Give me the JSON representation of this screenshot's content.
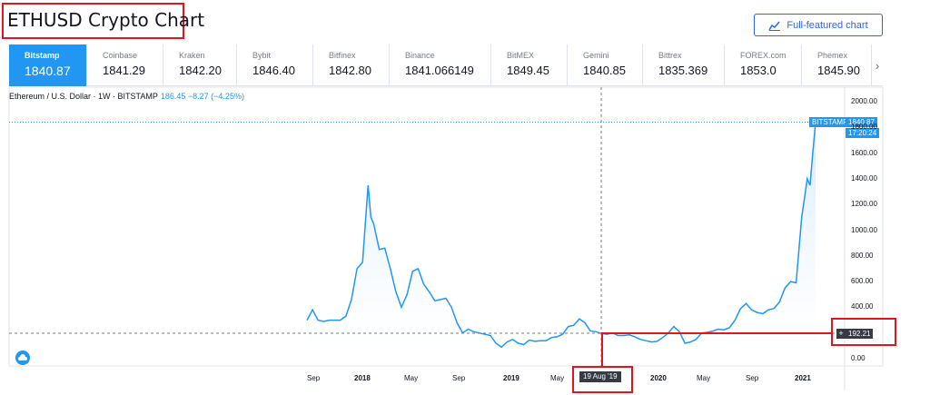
{
  "header": {
    "title": "ETHUSD Crypto Chart",
    "full_chart_label": "Full-featured chart"
  },
  "exchanges": [
    {
      "name": "Bitstamp",
      "price": "1840.87",
      "active": true
    },
    {
      "name": "Coinbase",
      "price": "1841.29"
    },
    {
      "name": "Kraken",
      "price": "1842.20"
    },
    {
      "name": "Bybit",
      "price": "1846.40"
    },
    {
      "name": "Bitfinex",
      "price": "1842.80"
    },
    {
      "name": "Binance",
      "price": "1841.066149"
    },
    {
      "name": "BitMEX",
      "price": "1849.45"
    },
    {
      "name": "Gemini",
      "price": "1840.85"
    },
    {
      "name": "Bittrex",
      "price": "1835.369"
    },
    {
      "name": "FOREX.com",
      "price": "1853.0"
    },
    {
      "name": "Phemex",
      "price": "1845.90"
    }
  ],
  "symbol": {
    "description": "Ethereum / U.S. Dollar · 1W · BITSTAMP",
    "quote": "186.45 −8.27 (−4.25%)"
  },
  "price_tags": {
    "source": "BITSTAMP",
    "last_price": "1840.87",
    "countdown": "17:20:24"
  },
  "crosshair": {
    "price": "192.21",
    "date": "19 Aug '19",
    "plus": "+"
  },
  "colors": {
    "line": "#2196f3",
    "area_top": "#cfe6fb",
    "highlight": "#e0161f",
    "active_tab": "#2196f3"
  },
  "icons": {
    "full_chart": "chart-line-icon",
    "more": "chevron-right-icon",
    "logo": "tradingview-cloud-icon"
  },
  "more_glyph": "›",
  "chart_data": {
    "type": "area",
    "series": [
      {
        "name": "BITSTAMP",
        "x": [
          "2017-08-07",
          "2017-08-21",
          "2017-09-04",
          "2017-09-18",
          "2017-10-02",
          "2017-10-16",
          "2017-10-30",
          "2017-11-13",
          "2017-11-27",
          "2017-12-11",
          "2017-12-25",
          "2018-01-08",
          "2018-01-15",
          "2018-01-22",
          "2018-02-05",
          "2018-02-19",
          "2018-03-05",
          "2018-03-19",
          "2018-04-02",
          "2018-04-16",
          "2018-04-30",
          "2018-05-14",
          "2018-05-28",
          "2018-06-11",
          "2018-06-25",
          "2018-07-09",
          "2018-07-23",
          "2018-08-06",
          "2018-08-20",
          "2018-09-03",
          "2018-09-17",
          "2018-10-01",
          "2018-10-15",
          "2018-10-29",
          "2018-11-12",
          "2018-11-26",
          "2018-12-10",
          "2018-12-24",
          "2019-01-07",
          "2019-01-21",
          "2019-02-04",
          "2019-02-18",
          "2019-03-04",
          "2019-03-18",
          "2019-04-01",
          "2019-04-15",
          "2019-04-29",
          "2019-05-13",
          "2019-05-27",
          "2019-06-10",
          "2019-06-24",
          "2019-07-08",
          "2019-07-22",
          "2019-08-05",
          "2019-08-19",
          "2019-09-02",
          "2019-09-16",
          "2019-09-30",
          "2019-10-14",
          "2019-10-28",
          "2019-11-11",
          "2019-11-25",
          "2019-12-09",
          "2019-12-23",
          "2020-01-06",
          "2020-01-20",
          "2020-02-03",
          "2020-02-17",
          "2020-03-02",
          "2020-03-16",
          "2020-03-30",
          "2020-04-13",
          "2020-04-27",
          "2020-05-11",
          "2020-05-25",
          "2020-06-08",
          "2020-06-22",
          "2020-07-06",
          "2020-07-20",
          "2020-08-03",
          "2020-08-17",
          "2020-08-31",
          "2020-09-14",
          "2020-09-28",
          "2020-10-12",
          "2020-10-26",
          "2020-11-09",
          "2020-11-23",
          "2020-12-07",
          "2020-12-21",
          "2021-01-04",
          "2021-01-11",
          "2021-01-18",
          "2021-01-25",
          "2021-02-01",
          "2021-02-08"
        ],
        "values": [
          300,
          380,
          300,
          290,
          300,
          300,
          300,
          330,
          460,
          700,
          750,
          1350,
          1100,
          1050,
          850,
          860,
          700,
          520,
          400,
          500,
          680,
          700,
          580,
          520,
          450,
          460,
          470,
          400,
          280,
          200,
          230,
          210,
          200,
          190,
          180,
          120,
          90,
          130,
          150,
          120,
          110,
          145,
          135,
          140,
          140,
          165,
          170,
          190,
          250,
          260,
          310,
          280,
          215,
          210,
          195,
          190,
          200,
          180,
          180,
          185,
          170,
          150,
          140,
          130,
          135,
          165,
          200,
          250,
          210,
          120,
          130,
          150,
          200,
          205,
          215,
          230,
          225,
          240,
          300,
          390,
          430,
          380,
          360,
          350,
          380,
          390,
          440,
          550,
          600,
          590,
          1100,
          1250,
          1400,
          1350,
          1600,
          1840
        ]
      }
    ],
    "xlabels": [
      "Sep",
      "2018",
      "May",
      "Sep",
      "2019",
      "May",
      "2020",
      "May",
      "Sep",
      "2021"
    ],
    "ylabels": [
      "2000.00",
      "1800.00",
      "1600.00",
      "1400.00",
      "1200.00",
      "1000.00",
      "800.00",
      "600.00",
      "400.00",
      "0.00"
    ],
    "ylim": [
      -50,
      2100
    ],
    "grid": false
  }
}
